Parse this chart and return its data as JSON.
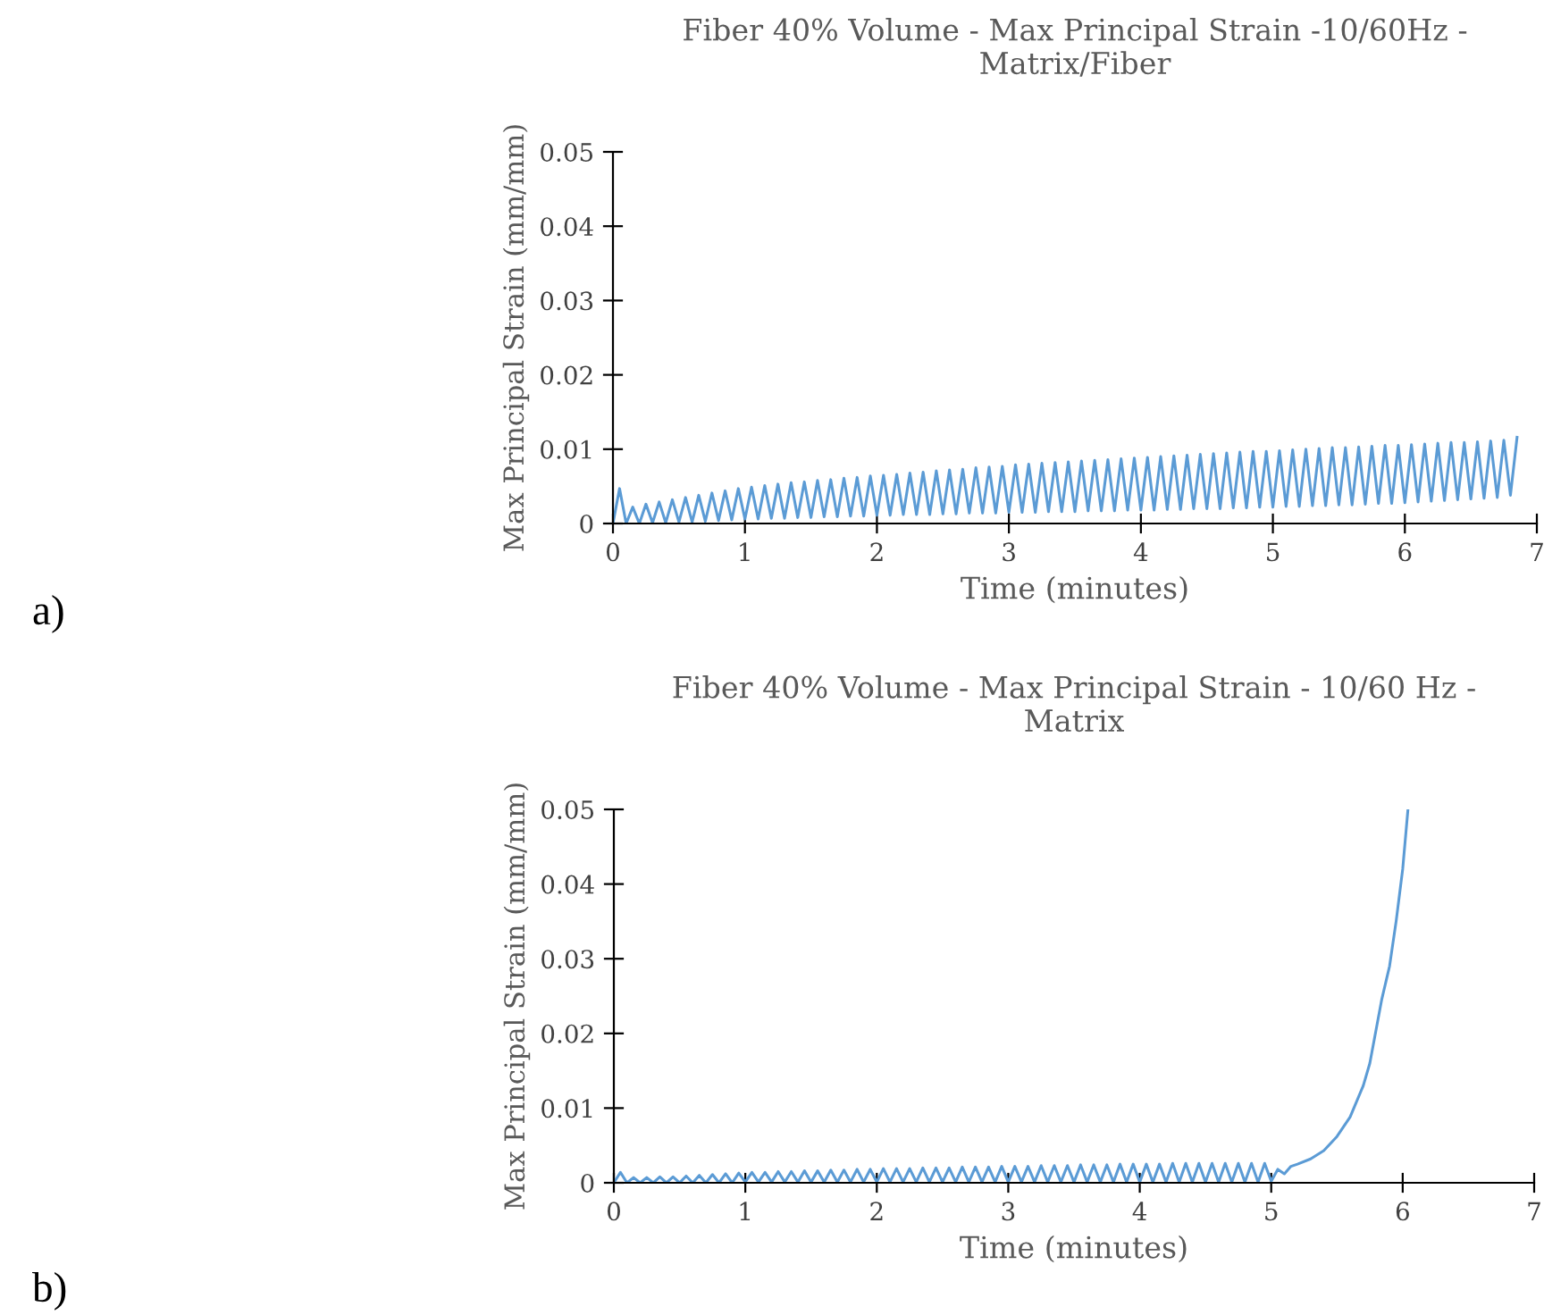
{
  "chart_data": [
    {
      "type": "line",
      "title": "Fiber 40% Volume - Max Principal Strain -10/60Hz - Matrix/Fiber",
      "xlabel": "Time (minutes)",
      "ylabel": "Max Principal Strain (mm/mm)",
      "annotations": [
        "a)"
      ],
      "xlim": [
        0,
        7
      ],
      "ylim": [
        0,
        0.05
      ],
      "xticks": [
        0,
        1,
        2,
        3,
        4,
        5,
        6,
        7
      ],
      "yticks": [
        0,
        0.01,
        0.02,
        0.03,
        0.04,
        0.05
      ],
      "grid": false,
      "marker": "none",
      "line_style": "solid",
      "series": [
        {
          "color": "#5b9bd5",
          "x": [
            0,
            0.05,
            0.1,
            0.15,
            0.2,
            0.25,
            0.3,
            0.35,
            0.4,
            0.45,
            0.5,
            0.55,
            0.6,
            0.65,
            0.7,
            0.75,
            0.8,
            0.85,
            0.9,
            0.95,
            1.0,
            1.05,
            1.1,
            1.15,
            1.2,
            1.25,
            1.3,
            1.35,
            1.4,
            1.45,
            1.5,
            1.55,
            1.6,
            1.65,
            1.7,
            1.75,
            1.8,
            1.85,
            1.9,
            1.95,
            2.0,
            2.05,
            2.1,
            2.15,
            2.2,
            2.25,
            2.3,
            2.35,
            2.4,
            2.45,
            2.5,
            2.55,
            2.6,
            2.65,
            2.7,
            2.75,
            2.8,
            2.85,
            2.9,
            2.95,
            3.0,
            3.05,
            3.1,
            3.15,
            3.2,
            3.25,
            3.3,
            3.35,
            3.4,
            3.45,
            3.5,
            3.55,
            3.6,
            3.65,
            3.7,
            3.75,
            3.8,
            3.85,
            3.9,
            3.95,
            4.0,
            4.05,
            4.1,
            4.15,
            4.2,
            4.25,
            4.3,
            4.35,
            4.4,
            4.45,
            4.5,
            4.55,
            4.6,
            4.65,
            4.7,
            4.75,
            4.8,
            4.85,
            4.9,
            4.95,
            5.0,
            5.05,
            5.1,
            5.15,
            5.2,
            5.25,
            5.3,
            5.35,
            5.4,
            5.45,
            5.5,
            5.55,
            5.6,
            5.65,
            5.7,
            5.75,
            5.8,
            5.85,
            5.9,
            5.95,
            6.0,
            6.05,
            6.1,
            6.15,
            6.2,
            6.25,
            6.3,
            6.35,
            6.4,
            6.45,
            6.5,
            6.55,
            6.6,
            6.65,
            6.7,
            6.75,
            6.8,
            6.85
          ],
          "values": [
            0,
            0.0047,
            0,
            0.0022,
            0,
            0.0026,
            0.0001,
            0.0029,
            0.0001,
            0.0032,
            0.0002,
            0.0035,
            0.0002,
            0.0038,
            0.0003,
            0.0041,
            0.0004,
            0.0044,
            0.0005,
            0.0047,
            0.0006,
            0.0049,
            0.0006,
            0.0051,
            0.0007,
            0.0053,
            0.0007,
            0.0055,
            0.0008,
            0.0056,
            0.0008,
            0.0058,
            0.0009,
            0.0059,
            0.0009,
            0.0061,
            0.001,
            0.0062,
            0.001,
            0.0064,
            0.0011,
            0.0065,
            0.0011,
            0.0066,
            0.0012,
            0.0068,
            0.0012,
            0.0069,
            0.0012,
            0.0071,
            0.0013,
            0.0072,
            0.0013,
            0.0073,
            0.0014,
            0.0075,
            0.0014,
            0.0076,
            0.0014,
            0.0077,
            0.0015,
            0.0079,
            0.0015,
            0.008,
            0.0015,
            0.0081,
            0.0016,
            0.0082,
            0.0016,
            0.0083,
            0.0016,
            0.0084,
            0.0017,
            0.0085,
            0.0017,
            0.0086,
            0.0017,
            0.0087,
            0.0018,
            0.0088,
            0.0018,
            0.0089,
            0.0018,
            0.009,
            0.0019,
            0.0091,
            0.0019,
            0.0092,
            0.002,
            0.0093,
            0.002,
            0.0094,
            0.002,
            0.0095,
            0.0021,
            0.0096,
            0.0021,
            0.0097,
            0.0022,
            0.0097,
            0.0022,
            0.0098,
            0.0023,
            0.0099,
            0.0023,
            0.01,
            0.0024,
            0.0101,
            0.0024,
            0.0102,
            0.0025,
            0.0102,
            0.0025,
            0.0103,
            0.0026,
            0.0104,
            0.0027,
            0.0105,
            0.0027,
            0.0105,
            0.0028,
            0.0106,
            0.0029,
            0.0107,
            0.003,
            0.0108,
            0.0031,
            0.0109,
            0.0032,
            0.0109,
            0.0033,
            0.011,
            0.0034,
            0.0111,
            0.0035,
            0.0112,
            0.0038,
            0.0116
          ]
        }
      ]
    },
    {
      "type": "line",
      "title": "Fiber 40% Volume - Max Principal Strain - 10/60 Hz - Matrix",
      "xlabel": "Time (minutes)",
      "ylabel": "Max Principal Strain (mm/mm)",
      "annotations": [
        "b)"
      ],
      "xlim": [
        0,
        7
      ],
      "ylim": [
        0,
        0.05
      ],
      "xticks": [
        0,
        1,
        2,
        3,
        4,
        5,
        6,
        7
      ],
      "yticks": [
        0,
        0.01,
        0.02,
        0.03,
        0.04,
        0.05
      ],
      "grid": false,
      "marker": "none",
      "line_style": "solid",
      "series": [
        {
          "color": "#5b9bd5",
          "x": [
            0,
            0.05,
            0.1,
            0.15,
            0.2,
            0.25,
            0.3,
            0.35,
            0.4,
            0.45,
            0.5,
            0.55,
            0.6,
            0.65,
            0.7,
            0.75,
            0.8,
            0.85,
            0.9,
            0.95,
            1.0,
            1.05,
            1.1,
            1.15,
            1.2,
            1.25,
            1.3,
            1.35,
            1.4,
            1.45,
            1.5,
            1.55,
            1.6,
            1.65,
            1.7,
            1.75,
            1.8,
            1.85,
            1.9,
            1.95,
            2.0,
            2.05,
            2.1,
            2.15,
            2.2,
            2.25,
            2.3,
            2.35,
            2.4,
            2.45,
            2.5,
            2.55,
            2.6,
            2.65,
            2.7,
            2.75,
            2.8,
            2.85,
            2.9,
            2.95,
            3.0,
            3.05,
            3.1,
            3.15,
            3.2,
            3.25,
            3.3,
            3.35,
            3.4,
            3.45,
            3.5,
            3.55,
            3.6,
            3.65,
            3.7,
            3.75,
            3.8,
            3.85,
            3.9,
            3.95,
            4.0,
            4.05,
            4.1,
            4.15,
            4.2,
            4.25,
            4.3,
            4.35,
            4.4,
            4.45,
            4.5,
            4.55,
            4.6,
            4.65,
            4.7,
            4.75,
            4.8,
            4.85,
            4.9,
            4.95,
            5.0,
            5.05,
            5.1,
            5.15,
            5.2,
            5.3,
            5.4,
            5.5,
            5.6,
            5.7,
            5.75,
            5.84,
            5.9,
            5.95,
            6.0,
            6.04
          ],
          "values": [
            0,
            0.0014,
            0,
            0.0007,
            0,
            0.0007,
            0,
            0.0008,
            0,
            0.0008,
            0,
            0.0009,
            0,
            0.001,
            0,
            0.0011,
            0,
            0.0012,
            0,
            0.0013,
            0.0001,
            0.0014,
            0.0001,
            0.0014,
            0.0001,
            0.0015,
            0.0001,
            0.0015,
            0.0001,
            0.0016,
            0.0001,
            0.0016,
            0.0001,
            0.0017,
            0.0001,
            0.0017,
            0.0001,
            0.0018,
            0.0001,
            0.0018,
            0.0001,
            0.0019,
            0.0001,
            0.0019,
            0.0001,
            0.0019,
            0.0001,
            0.002,
            0.0001,
            0.002,
            0.0001,
            0.002,
            0.0001,
            0.0021,
            0.0001,
            0.0021,
            0.0001,
            0.0021,
            0.0001,
            0.0022,
            0.0001,
            0.0022,
            0.0001,
            0.0022,
            0.0001,
            0.0023,
            0.0001,
            0.0023,
            0.0001,
            0.0023,
            0.0001,
            0.0024,
            0.0001,
            0.0024,
            0.0001,
            0.0024,
            0.0001,
            0.0025,
            0.0001,
            0.0025,
            0.0001,
            0.0025,
            0.0001,
            0.0025,
            0.0001,
            0.0026,
            0.0001,
            0.0026,
            0.0001,
            0.0026,
            0.0001,
            0.0026,
            0.0001,
            0.0026,
            0.0001,
            0.0026,
            0.0001,
            0.0026,
            0.0001,
            0.0026,
            0.0002,
            0.0018,
            0.0012,
            0.0022,
            0.0025,
            0.0032,
            0.0043,
            0.0062,
            0.0088,
            0.013,
            0.016,
            0.0245,
            0.029,
            0.035,
            0.042,
            0.05
          ]
        }
      ]
    }
  ]
}
